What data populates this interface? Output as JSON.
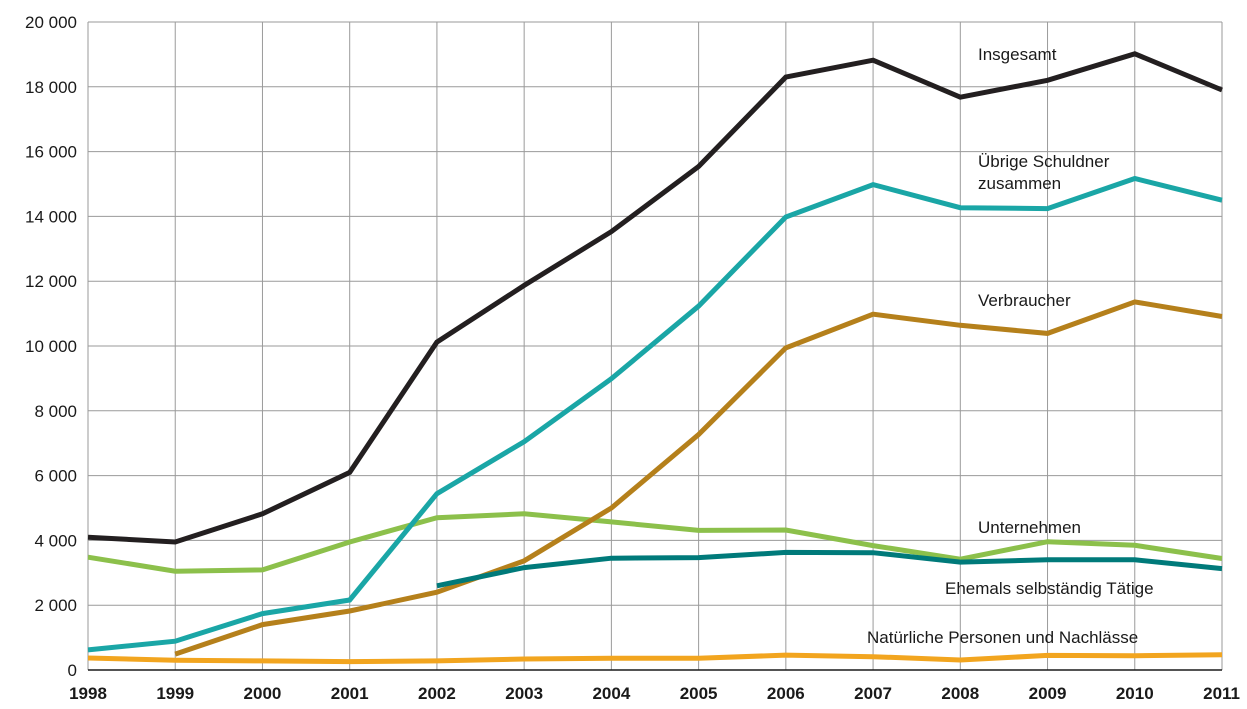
{
  "chart_data": {
    "type": "line",
    "title": "",
    "xlabel": "",
    "ylabel": "",
    "x": [
      "1998",
      "1999",
      "2000",
      "2001",
      "2002",
      "2003",
      "2004",
      "2005",
      "2006",
      "2007",
      "2008",
      "2009",
      "2010",
      "2011"
    ],
    "ylim": [
      0,
      20000
    ],
    "y_ticks": [
      0,
      2000,
      4000,
      6000,
      8000,
      10000,
      12000,
      14000,
      16000,
      18000,
      20000
    ],
    "y_tick_labels": [
      "0",
      "2 000",
      "4 000",
      "6 000",
      "8 000",
      "10 000",
      "12 000",
      "14 000",
      "16 000",
      "18 000",
      "20 000"
    ],
    "grid": true,
    "series": [
      {
        "name": "Insgesamt",
        "color": "#231f20",
        "values": [
          4100,
          3950,
          4820,
          6100,
          10120,
          11870,
          13530,
          15540,
          18300,
          18820,
          17680,
          18200,
          19020,
          17900
        ]
      },
      {
        "name": "Übrige Schuldner zusammen",
        "color": "#1aa6a6",
        "values": [
          620,
          890,
          1740,
          2160,
          5440,
          7050,
          8990,
          11230,
          13980,
          14980,
          14270,
          14240,
          15170,
          14500
        ]
      },
      {
        "name": "Verbraucher",
        "color": "#b5801b",
        "values": [
          null,
          490,
          1400,
          1820,
          2400,
          3370,
          5000,
          7270,
          9940,
          10980,
          10640,
          10390,
          11360,
          10910
        ]
      },
      {
        "name": "Unternehmen",
        "color": "#8cc04b",
        "values": [
          3480,
          3050,
          3090,
          3950,
          4700,
          4820,
          4570,
          4310,
          4320,
          3840,
          3420,
          3960,
          3850,
          3440
        ]
      },
      {
        "name": "Ehemals selbständig Tätige",
        "color": "#007a7a",
        "values": [
          null,
          null,
          null,
          null,
          2600,
          3160,
          3450,
          3470,
          3630,
          3620,
          3330,
          3400,
          3400,
          3130
        ]
      },
      {
        "name": "Natürliche Personen und Nachlässe",
        "color": "#f2a51f",
        "values": [
          370,
          300,
          280,
          260,
          280,
          340,
          360,
          360,
          460,
          410,
          310,
          450,
          440,
          470
        ]
      }
    ],
    "annotations": [
      {
        "series": 0,
        "lines": [
          "Insgesamt"
        ]
      },
      {
        "series": 1,
        "lines": [
          "Übrige Schuldner",
          "zusammen"
        ]
      },
      {
        "series": 2,
        "lines": [
          "Verbraucher"
        ]
      },
      {
        "series": 3,
        "lines": [
          "Unternehmen"
        ]
      },
      {
        "series": 4,
        "lines": [
          "Ehemals selbständig Tätige"
        ]
      },
      {
        "series": 5,
        "lines": [
          "Natürliche Personen und Nachlässe"
        ]
      }
    ]
  }
}
